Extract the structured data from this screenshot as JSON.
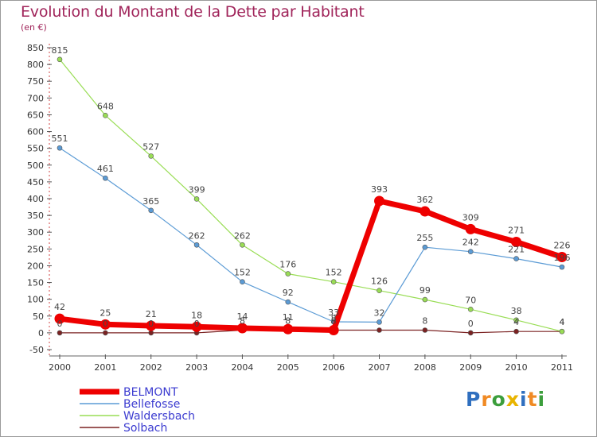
{
  "chart_data": {
    "type": "line",
    "title": "Evolution du Montant de la Dette par Habitant",
    "unit_label": "(en €)",
    "xlabel": "",
    "ylabel": "",
    "x": [
      "2000",
      "2001",
      "2002",
      "2003",
      "2004",
      "2005",
      "2006",
      "2007",
      "2008",
      "2009",
      "2010",
      "2011"
    ],
    "ylim": [
      -50,
      850
    ],
    "yticks": [
      -50,
      0,
      50,
      100,
      150,
      200,
      250,
      300,
      350,
      400,
      450,
      500,
      550,
      600,
      650,
      700,
      750,
      800,
      850
    ],
    "grid": false,
    "legend_position": "bottom-left",
    "series": [
      {
        "name": "BELMONT",
        "color": "#ee0000",
        "values": [
          42,
          25,
          21,
          18,
          14,
          11,
          8,
          393,
          362,
          309,
          271,
          226
        ]
      },
      {
        "name": "Bellefosse",
        "color": "#5b9bd5",
        "values": [
          551,
          461,
          365,
          262,
          152,
          92,
          33,
          32,
          255,
          242,
          221,
          196
        ]
      },
      {
        "name": "Waldersbach",
        "color": "#99dd55",
        "values": [
          815,
          648,
          527,
          399,
          262,
          176,
          152,
          126,
          99,
          70,
          38,
          4
        ]
      },
      {
        "name": "Solbach",
        "color": "#7b2222",
        "values": [
          0,
          0,
          0,
          0,
          8,
          8,
          8,
          8,
          8,
          0,
          4,
          4
        ]
      }
    ],
    "data_labels": [
      {
        "series": "BELMONT",
        "values": [
          "42",
          "25",
          "21",
          "18",
          "14",
          "11",
          "8",
          "393",
          "362",
          "309",
          "271",
          "226"
        ]
      },
      {
        "series": "Bellefosse",
        "values": [
          "551",
          "461",
          "365",
          "262",
          "152",
          "92",
          "33",
          "32",
          "255",
          "242",
          "221",
          "196"
        ]
      },
      {
        "series": "Waldersbach",
        "values": [
          "815",
          "648",
          "527",
          "399",
          "262",
          "176",
          "152",
          "126",
          "99",
          "70",
          "38",
          "4"
        ]
      },
      {
        "series": "Solbach",
        "values": [
          "0",
          "0",
          "0",
          "0",
          "8",
          "8",
          "8",
          "",
          "8",
          "0",
          "4",
          "4"
        ]
      }
    ]
  },
  "logo": {
    "letters": [
      "P",
      "r",
      "o",
      "x",
      "i",
      "t",
      "i"
    ],
    "colors": [
      "#2f6fbf",
      "#f08a24",
      "#3c9e3c",
      "#e8b400",
      "#2f6fbf",
      "#f08a24",
      "#3c9e3c"
    ]
  }
}
